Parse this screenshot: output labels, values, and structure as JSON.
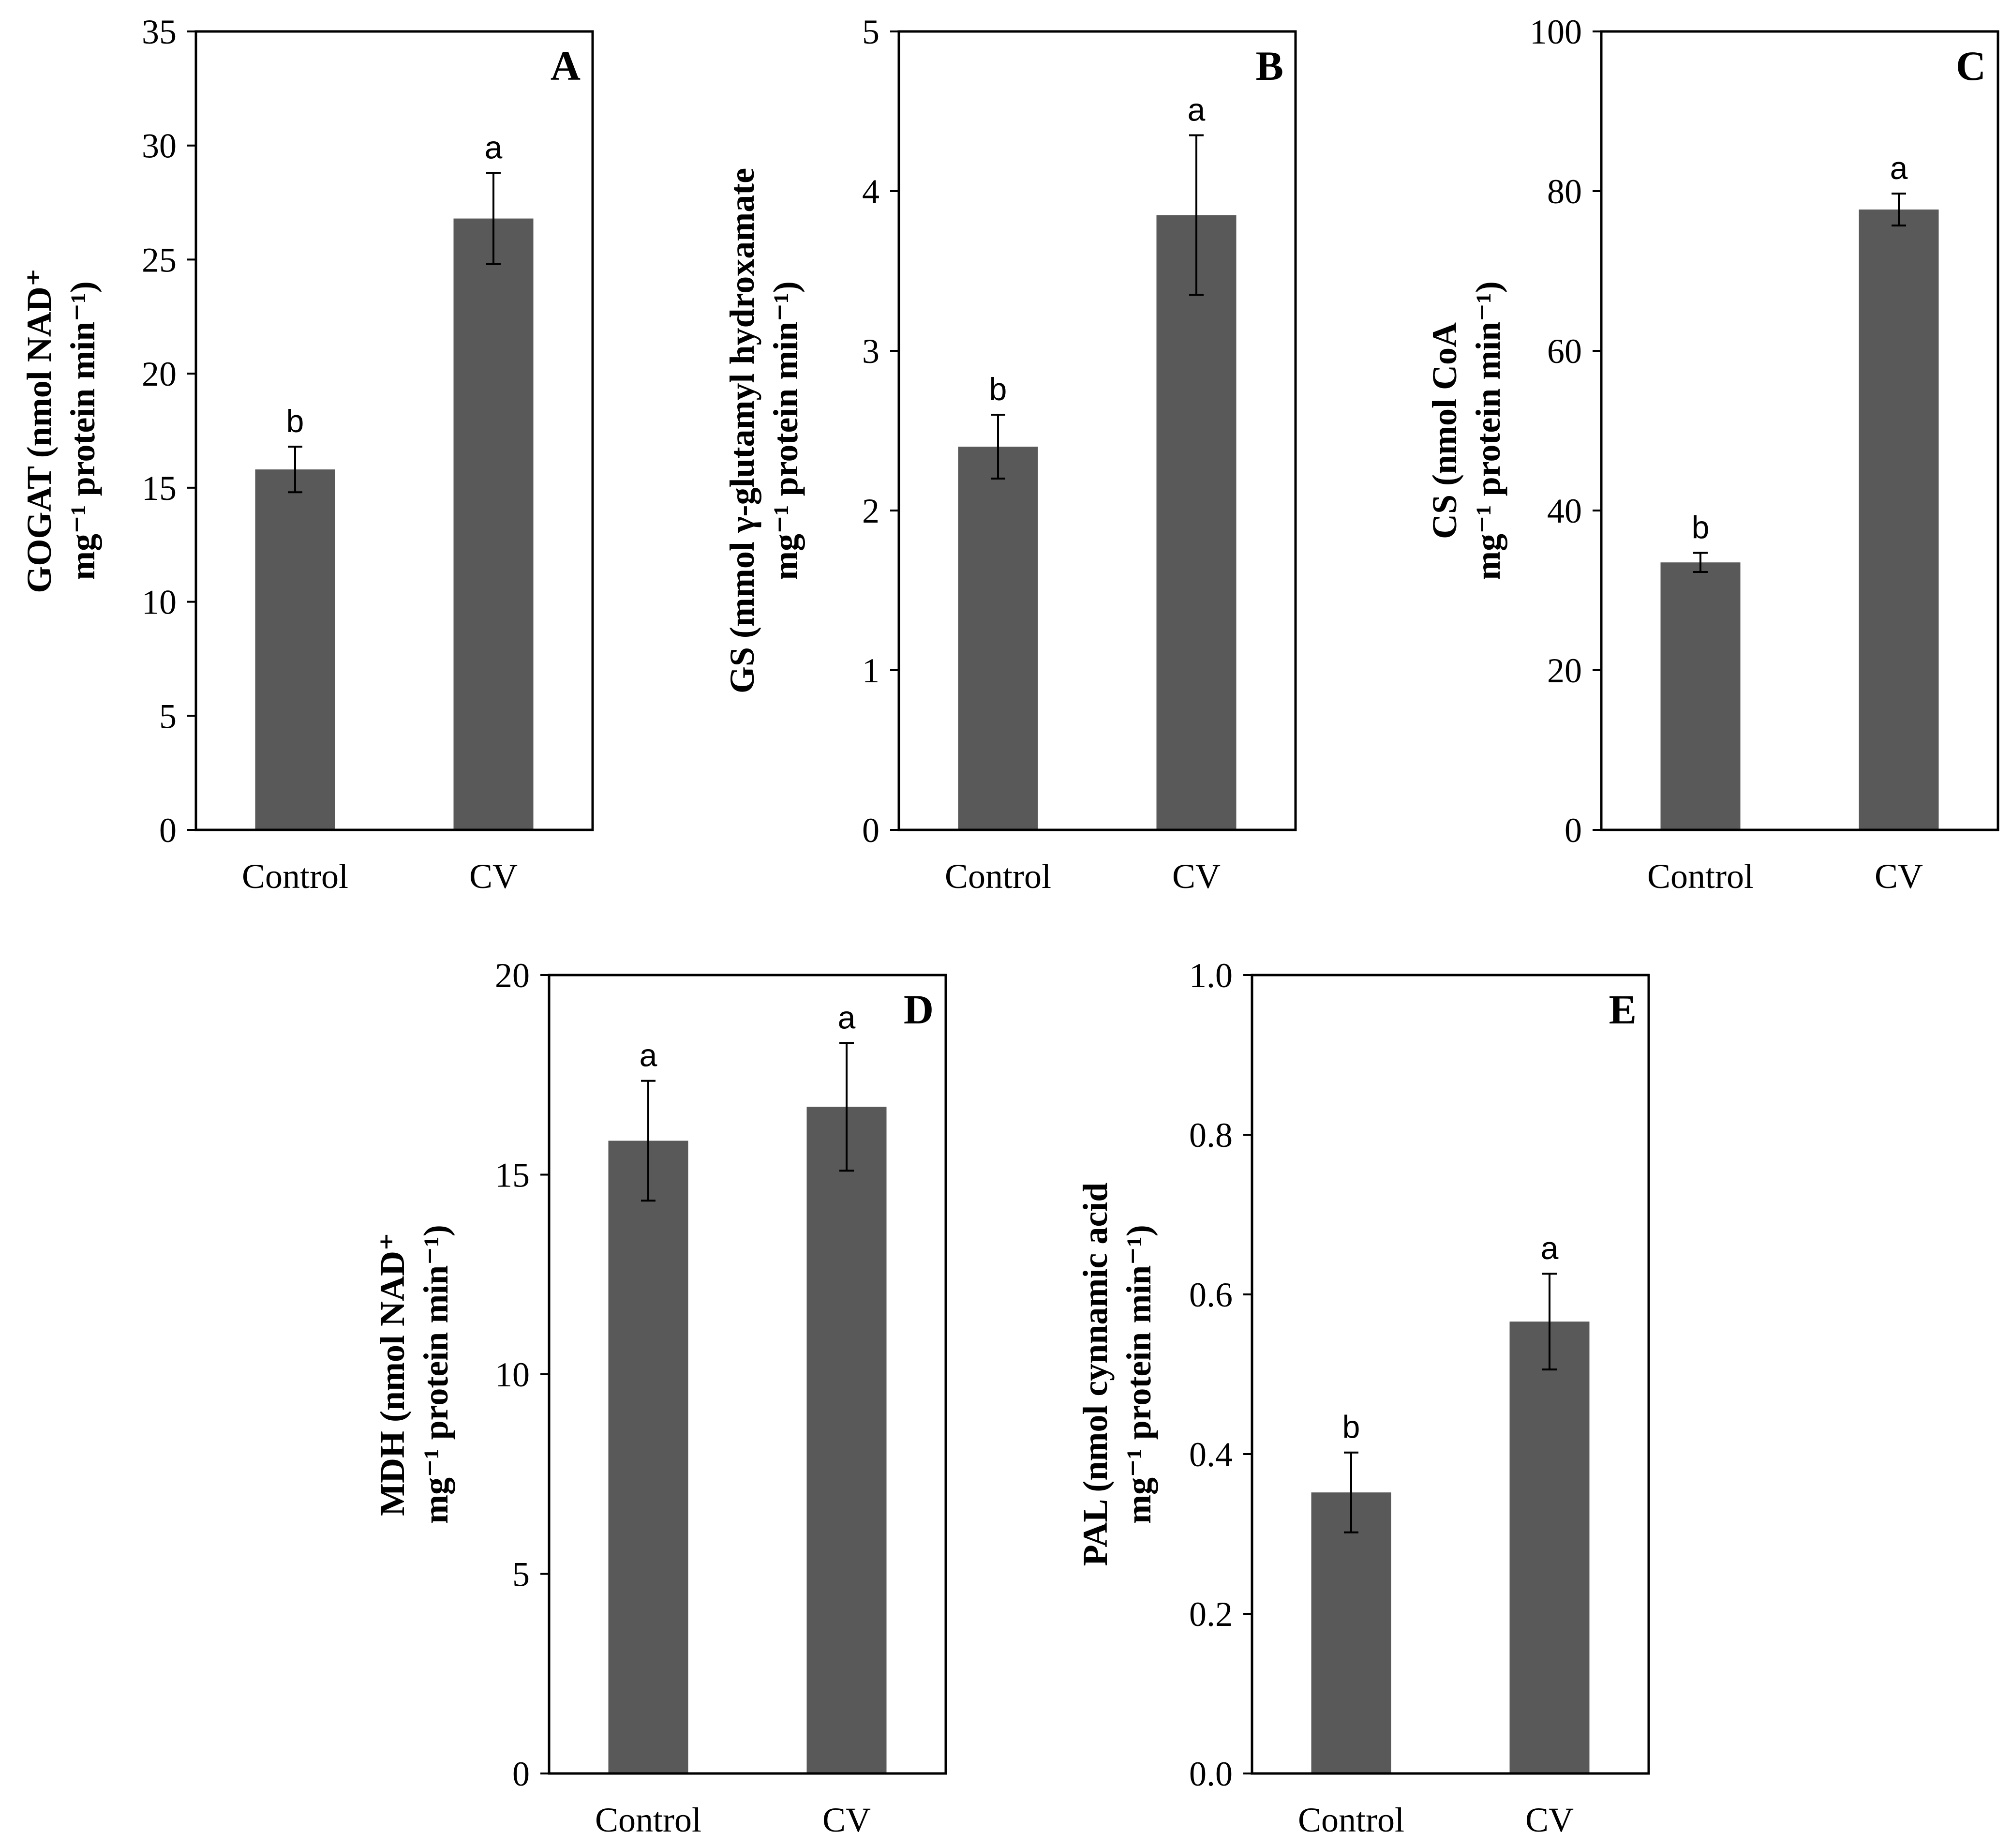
{
  "chart_data": [
    {
      "type": "bar",
      "panel": "A",
      "categories": [
        "Control",
        "CV"
      ],
      "values": [
        15.8,
        26.8
      ],
      "errors": [
        1.0,
        2.0
      ],
      "significance": [
        "b",
        "a"
      ],
      "ylabel_line1": "GOGAT (nmol NAD⁺",
      "ylabel_line2": "mg⁻¹ protein min⁻¹)",
      "ylim": [
        0,
        35
      ],
      "yticks": [
        0,
        5,
        10,
        15,
        20,
        25,
        30,
        35
      ],
      "ytick_labels": [
        "0",
        "5",
        "10",
        "15",
        "20",
        "25",
        "30",
        "35"
      ],
      "bar_color": "#595959"
    },
    {
      "type": "bar",
      "panel": "B",
      "categories": [
        "Control",
        "CV"
      ],
      "values": [
        2.4,
        3.85
      ],
      "errors": [
        0.2,
        0.5
      ],
      "significance": [
        "b",
        "a"
      ],
      "ylabel_line1": "GS (mmol γ-glutamyl hydroxamate",
      "ylabel_line2": "mg⁻¹ protein min⁻¹)",
      "ylim": [
        0,
        5
      ],
      "yticks": [
        0,
        1,
        2,
        3,
        4,
        5
      ],
      "ytick_labels": [
        "0",
        "1",
        "2",
        "3",
        "4",
        "5"
      ],
      "bar_color": "#595959"
    },
    {
      "type": "bar",
      "panel": "C",
      "categories": [
        "Control",
        "CV"
      ],
      "values": [
        33.5,
        77.7
      ],
      "errors": [
        1.2,
        2.0
      ],
      "significance": [
        "b",
        "a"
      ],
      "ylabel_line1": "CS (nmol CoA",
      "ylabel_line2": "mg⁻¹ protein min⁻¹)",
      "ylim": [
        0,
        100
      ],
      "yticks": [
        0,
        20,
        40,
        60,
        80,
        100
      ],
      "ytick_labels": [
        "0",
        "20",
        "40",
        "60",
        "80",
        "100"
      ],
      "bar_color": "#595959"
    },
    {
      "type": "bar",
      "panel": "D",
      "categories": [
        "Control",
        "CV"
      ],
      "values": [
        15.85,
        16.7
      ],
      "errors": [
        1.5,
        1.6
      ],
      "significance": [
        "a",
        "a"
      ],
      "ylabel_line1": "MDH (nmol NAD⁺",
      "ylabel_line2": "mg⁻¹ protein min⁻¹)",
      "ylim": [
        0,
        20
      ],
      "yticks": [
        0,
        5,
        10,
        15,
        20
      ],
      "ytick_labels": [
        "0",
        "5",
        "10",
        "15",
        "20"
      ],
      "bar_color": "#595959"
    },
    {
      "type": "bar",
      "panel": "E",
      "categories": [
        "Control",
        "CV"
      ],
      "values": [
        0.352,
        0.566
      ],
      "errors": [
        0.05,
        0.06
      ],
      "significance": [
        "b",
        "a"
      ],
      "ylabel_line1": "PAL (nmol cynnamic acid",
      "ylabel_line2": "mg⁻¹ protein min⁻¹)",
      "ylim": [
        0,
        1.0
      ],
      "yticks": [
        0,
        0.2,
        0.4,
        0.6,
        0.8,
        1.0
      ],
      "ytick_labels": [
        "0.0",
        "0.2",
        "0.4",
        "0.6",
        "0.8",
        "1.0"
      ],
      "bar_color": "#595959"
    }
  ]
}
